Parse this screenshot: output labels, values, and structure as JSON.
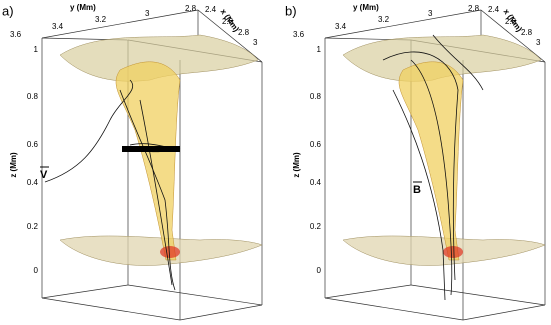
{
  "panels": [
    {
      "label": "a)",
      "y_axis_title": "y (Mm)",
      "x_axis_title": "x (Mm)",
      "z_axis_title": "z (Mm)",
      "y_ticks": [
        "3.6",
        "3.4",
        "3.2",
        "3",
        "2.8"
      ],
      "x_ticks": [
        "2.4",
        "2.6",
        "2.8",
        "3"
      ],
      "z_ticks": [
        "1",
        "0.8",
        "0.6",
        "0.4",
        "0.2",
        "0"
      ],
      "annotation": "V"
    },
    {
      "label": "b)",
      "y_axis_title": "y (Mm)",
      "x_axis_title": "x (Mm)",
      "z_axis_title": "z (Mm)",
      "y_ticks": [
        "3.6",
        "3.4",
        "3.2",
        "3",
        "2.8"
      ],
      "x_ticks": [
        "2.4",
        "2.6",
        "2.8",
        "3"
      ],
      "z_ticks": [
        "1",
        "0.8",
        "0.6",
        "0.4",
        "0.2",
        "0"
      ],
      "annotation": "B"
    }
  ]
}
